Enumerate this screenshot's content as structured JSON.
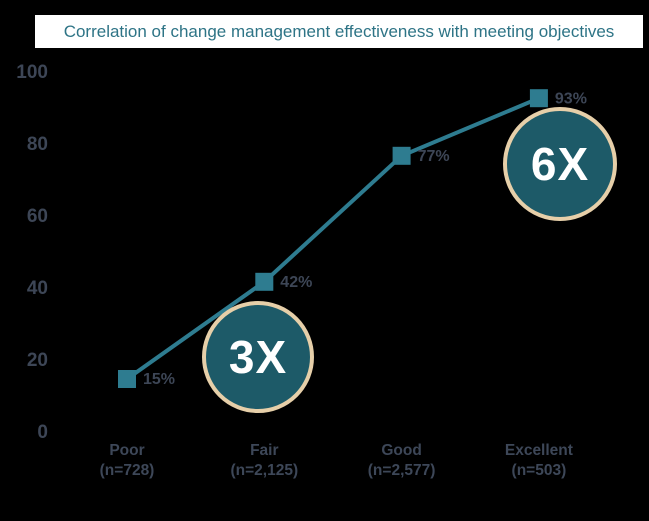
{
  "title": {
    "text": "Correlation of change management effectiveness with meeting objectives"
  },
  "chart_data": {
    "type": "line",
    "title": "Correlation of change management effectiveness with meeting objectives",
    "categories": [
      "Poor",
      "Fair",
      "Good",
      "Excellent"
    ],
    "category_sublabels": [
      "(n=728)",
      "(n=2,125)",
      "(n=2,577)",
      "(n=503)"
    ],
    "values": [
      15,
      42,
      77,
      93
    ],
    "data_labels": [
      "15%",
      "42%",
      "77%",
      "93%"
    ],
    "y_ticks": [
      0,
      20,
      40,
      60,
      80,
      100
    ],
    "ylim": [
      0,
      100
    ],
    "xlabel": "",
    "ylabel": "",
    "grid": false,
    "legend": false,
    "marker": "square",
    "annotations": [
      {
        "label": "3X",
        "anchor_category": "Fair"
      },
      {
        "label": "6X",
        "anchor_category": "Excellent"
      }
    ]
  },
  "colors": {
    "background": "#000000",
    "title_background": "#FFFFFF",
    "title_text": "#2E7486",
    "line": "#2E7C90",
    "marker": "#2E7C90",
    "data_label": "#3D4656",
    "axis_label": "#3D4656",
    "badge_fill": "#1D5A68",
    "badge_border": "#E6CFA9",
    "badge_text": "#FFFFFF"
  }
}
